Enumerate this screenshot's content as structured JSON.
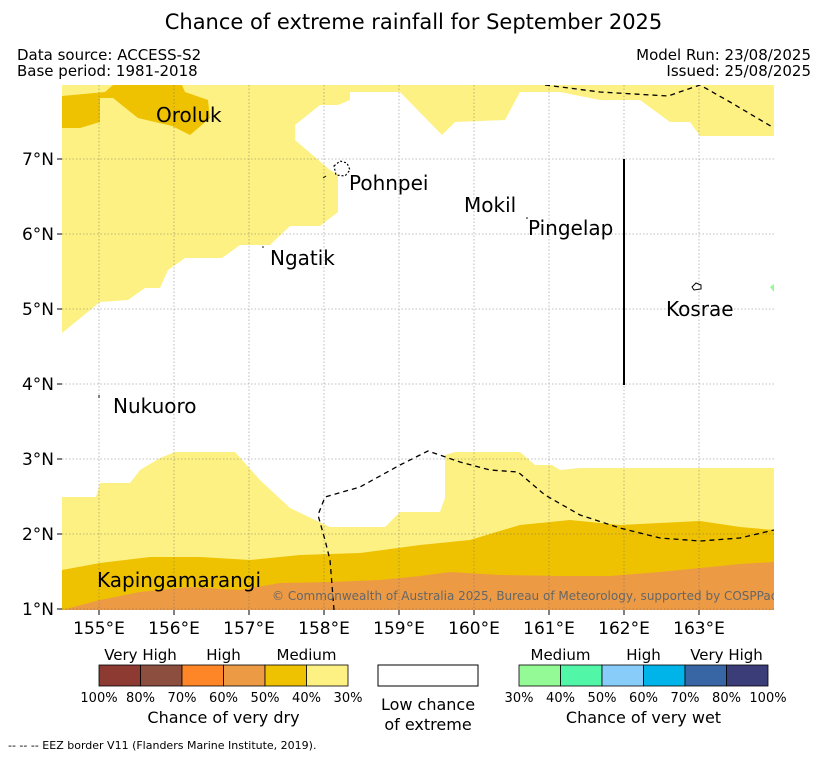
{
  "title": "Chance of extreme rainfall for September 2025",
  "data_source": "Data source: ACCESS-S2",
  "base_period": "Base period: 1981-2018",
  "model_run": "Model Run: 23/08/2025",
  "issued": "Issued: 25/08/2025",
  "map": {
    "lon_ticks": [
      "155°E",
      "156°E",
      "157°E",
      "158°E",
      "159°E",
      "160°E",
      "161°E",
      "162°E",
      "163°E"
    ],
    "lat_ticks": [
      "1°N",
      "2°N",
      "3°N",
      "4°N",
      "5°N",
      "6°N",
      "7°N"
    ],
    "places": [
      "Oroluk",
      "Pohnpei",
      "Mokil",
      "Pingelap",
      "Ngatik",
      "Kosrae",
      "Nukuoro",
      "Kapingamarangi"
    ],
    "copyright": "© Commonwealth of Australia 2025, Bureau of Meteorology, supported by COSPPac"
  },
  "legend": {
    "dry": {
      "headings": [
        "Very High",
        "High",
        "Medium"
      ],
      "colors": [
        "#8c3a32",
        "#8c4e3e",
        "#ff8627",
        "#ed9a45",
        "#eec200",
        "#fdf183"
      ],
      "ticks": [
        "100%",
        "80%",
        "70%",
        "60%",
        "50%",
        "40%",
        "30%"
      ],
      "caption": "Chance of very dry"
    },
    "low": {
      "caption_line1": "Low chance",
      "caption_line2": "of extreme"
    },
    "wet": {
      "headings": [
        "Medium",
        "High",
        "Very High"
      ],
      "colors": [
        "#94fa95",
        "#52f6a7",
        "#88cdfa",
        "#00b4ea",
        "#3865a3",
        "#3b3d79"
      ],
      "ticks": [
        "30%",
        "40%",
        "50%",
        "60%",
        "70%",
        "80%",
        "100%"
      ],
      "caption": "Chance of very wet"
    }
  },
  "footnote": "--  --  -- EEZ border V11 (Flanders Marine Institute, 2019).",
  "colors": {
    "light_yellow": "#fdf183",
    "gold": "#eec200",
    "orange": "#ed9a45",
    "green": "#94fa95"
  }
}
